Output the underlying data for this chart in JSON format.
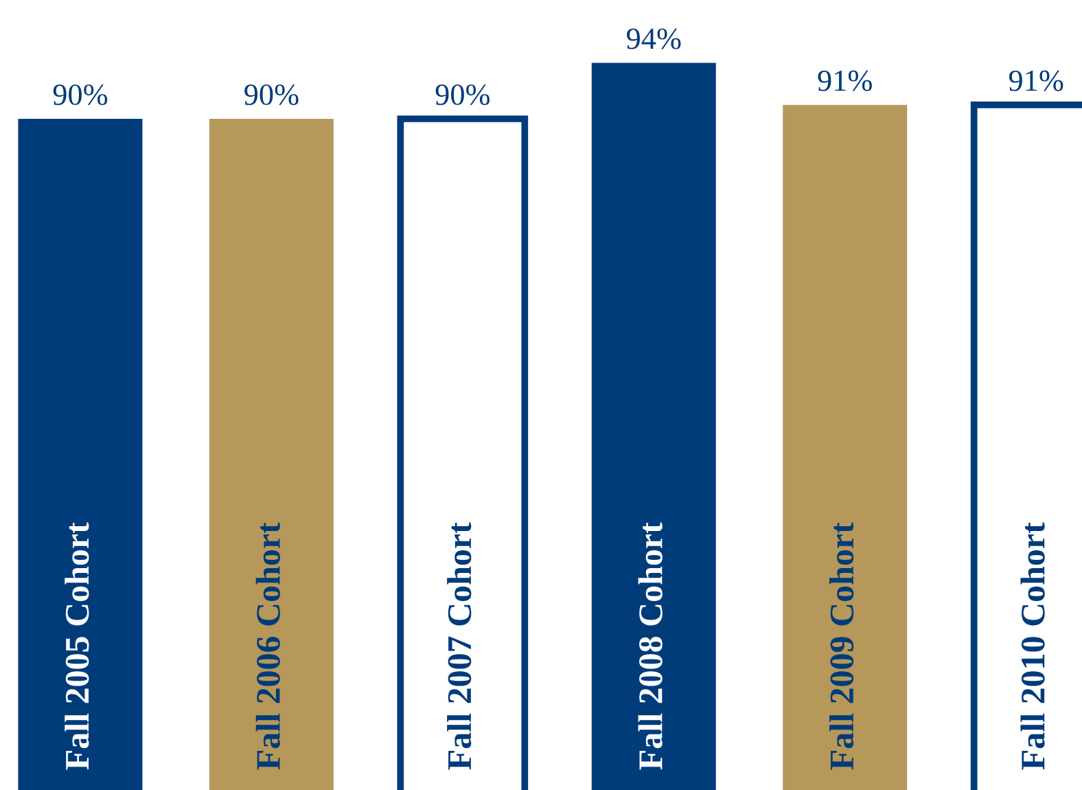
{
  "chart_data": {
    "type": "bar",
    "categories": [
      "Fall 2005 Cohort",
      "Fall 2006 Cohort",
      "Fall 2007 Cohort",
      "Fall 2008 Cohort",
      "Fall 2009 Cohort",
      "Fall 2010 Cohort"
    ],
    "values": [
      90,
      90,
      90,
      94,
      91,
      91
    ],
    "colors": [
      "#003b7a",
      "#b5985a",
      "#ffffff",
      "#003b7a",
      "#b5985a",
      "#ffffff"
    ],
    "value_labels": [
      "90%",
      "90%",
      "90%",
      "94%",
      "91%",
      "91%"
    ],
    "ylim": [
      42,
      98.5
    ]
  }
}
